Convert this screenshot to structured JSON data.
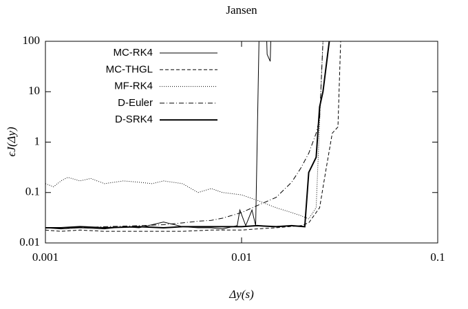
{
  "chart_data": {
    "type": "line",
    "title": "Jansen",
    "xlabel": "Δy(s)",
    "ylabel": "ϵJ(Δy)",
    "xscale": "log",
    "yscale": "log",
    "xlim": [
      0.001,
      0.1
    ],
    "ylim": [
      0.01,
      100
    ],
    "xticks": [
      0.001,
      0.01,
      0.1
    ],
    "yticks": [
      0.01,
      0.1,
      1,
      10,
      100
    ],
    "legend": "upper-left",
    "series": [
      {
        "name": "MC-RK4",
        "color": "#000000",
        "width": 1,
        "dash": "none",
        "x": [
          0.001,
          0.0012,
          0.0015,
          0.002,
          0.0025,
          0.003,
          0.004,
          0.005,
          0.006,
          0.007,
          0.008,
          0.009,
          0.0095,
          0.0098,
          0.0105,
          0.0113,
          0.0118,
          0.0124,
          0.0132,
          0.0135,
          0.014,
          0.0143
        ],
        "values": [
          0.02,
          0.019,
          0.02,
          0.019,
          0.021,
          0.02,
          0.026,
          0.021,
          0.02,
          0.02,
          0.019,
          0.021,
          0.022,
          0.045,
          0.022,
          0.045,
          0.022,
          1000,
          1000,
          55,
          40,
          1000
        ]
      },
      {
        "name": "MC-THGL",
        "color": "#000000",
        "width": 1,
        "dash": "5,3",
        "x": [
          0.001,
          0.0012,
          0.0015,
          0.002,
          0.003,
          0.004,
          0.005,
          0.007,
          0.01,
          0.012,
          0.015,
          0.02,
          0.022,
          0.025,
          0.027,
          0.029,
          0.031,
          0.032,
          0.033
        ],
        "values": [
          0.018,
          0.017,
          0.018,
          0.017,
          0.017,
          0.017,
          0.017,
          0.018,
          0.018,
          0.019,
          0.02,
          0.022,
          0.025,
          0.05,
          0.3,
          1.5,
          2,
          100,
          1000
        ]
      },
      {
        "name": "MF-RK4",
        "color": "#000000",
        "width": 1,
        "dash": "1,2",
        "x": [
          0.001,
          0.0011,
          0.0012,
          0.0013,
          0.0015,
          0.0017,
          0.002,
          0.0025,
          0.003,
          0.0035,
          0.004,
          0.005,
          0.006,
          0.007,
          0.008,
          0.01,
          0.012,
          0.015,
          0.018,
          0.02,
          0.022,
          0.024,
          0.026,
          0.027
        ],
        "values": [
          0.15,
          0.13,
          0.17,
          0.2,
          0.17,
          0.19,
          0.15,
          0.17,
          0.16,
          0.15,
          0.17,
          0.15,
          0.1,
          0.12,
          0.1,
          0.09,
          0.07,
          0.05,
          0.04,
          0.035,
          0.03,
          0.05,
          100,
          1000
        ]
      },
      {
        "name": "D-Euler",
        "color": "#000000",
        "width": 1,
        "dash": "7,3,1,3",
        "x": [
          0.001,
          0.0015,
          0.002,
          0.003,
          0.004,
          0.005,
          0.006,
          0.007,
          0.008,
          0.01,
          0.012,
          0.015,
          0.018,
          0.02,
          0.022,
          0.024,
          0.025,
          0.026,
          0.027
        ],
        "values": [
          0.02,
          0.02,
          0.021,
          0.022,
          0.023,
          0.025,
          0.027,
          0.028,
          0.031,
          0.04,
          0.055,
          0.08,
          0.16,
          0.3,
          0.6,
          1.5,
          3,
          100,
          1000
        ]
      },
      {
        "name": "D-SRK4",
        "color": "#000000",
        "width": 2,
        "dash": "none",
        "x": [
          0.001,
          0.0012,
          0.0015,
          0.002,
          0.003,
          0.004,
          0.005,
          0.007,
          0.01,
          0.012,
          0.015,
          0.018,
          0.021,
          0.022,
          0.024,
          0.025,
          0.026,
          0.028,
          0.029
        ],
        "values": [
          0.02,
          0.02,
          0.021,
          0.02,
          0.021,
          0.02,
          0.021,
          0.021,
          0.021,
          0.022,
          0.021,
          0.022,
          0.021,
          0.25,
          0.5,
          5,
          10,
          100,
          1000
        ]
      }
    ]
  }
}
